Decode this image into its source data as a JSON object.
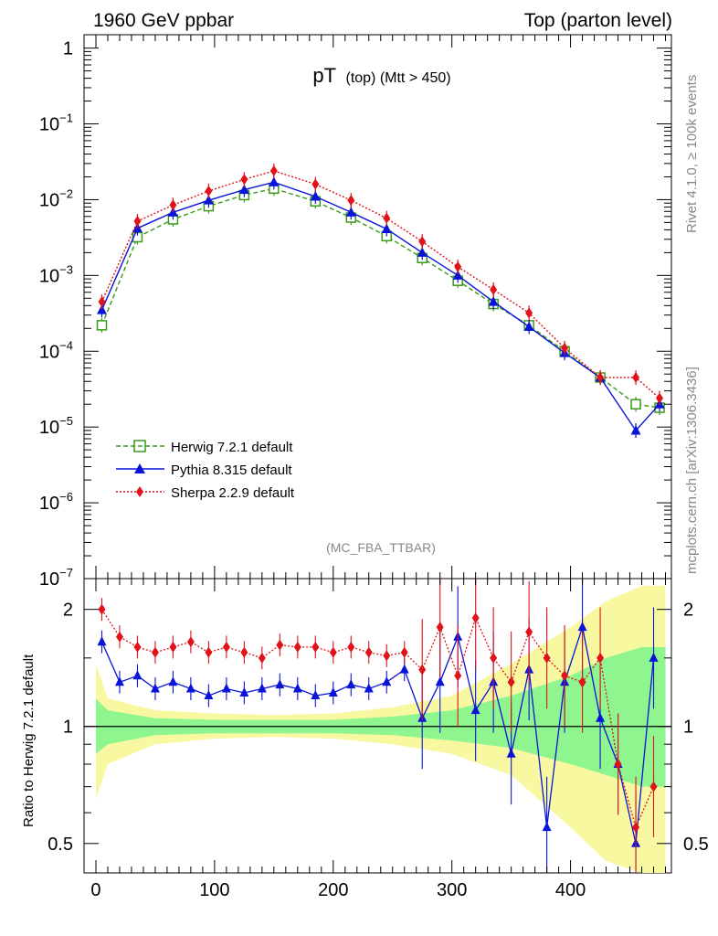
{
  "header": {
    "left": "1960 GeV ppbar",
    "right": "Top (parton level)"
  },
  "side_labels": {
    "rivet": "Rivet 4.1.0, ≥ 100k events",
    "mcplots": "mcplots.cern.ch [arXiv:1306.3436]"
  },
  "analysis_tag": "(MC_FBA_TTBAR)",
  "ratio_ylabel": "Ratio to Herwig 7.2.1 default",
  "colors": {
    "herwig": "#3a9a1a",
    "pythia": "#0a14d8",
    "sherpa": "#e0121a",
    "band_inner": "#8ff58f",
    "band_outer": "#f8f8a0"
  },
  "chart_data": [
    {
      "type": "scatter",
      "title_main": "pT",
      "title_sub": "(top) (Mtt > 450)",
      "yscale": "log",
      "xlim": [
        -10,
        485
      ],
      "ylim": [
        1e-07,
        1.5
      ],
      "x_ticks": [
        0,
        100,
        200,
        300,
        400
      ],
      "x_tick_labels": [
        "0",
        "100",
        "200",
        "300",
        "400"
      ],
      "y_ticks": [
        1e-07,
        1e-06,
        1e-05,
        0.0001,
        0.001,
        0.01,
        0.1,
        1
      ],
      "y_tick_labels": [
        {
          "base": "10",
          "exp": "−7"
        },
        {
          "base": "10",
          "exp": "−6"
        },
        {
          "base": "10",
          "exp": "−5"
        },
        {
          "base": "10",
          "exp": "−4"
        },
        {
          "base": "10",
          "exp": "−3"
        },
        {
          "base": "10",
          "exp": "−2"
        },
        {
          "base": "10",
          "exp": "−1"
        },
        {
          "base": "1",
          "exp": ""
        }
      ],
      "legend_position": "bottom-left",
      "series": [
        {
          "name": "Herwig 7.2.1 default",
          "key": "herwig",
          "marker": "open-square",
          "line": "dashed",
          "x": [
            5,
            35,
            65,
            95,
            125,
            150,
            185,
            215,
            245,
            275,
            305,
            335,
            365,
            395,
            425,
            455,
            475
          ],
          "y": [
            0.00022,
            0.0032,
            0.0055,
            0.0082,
            0.0115,
            0.014,
            0.0095,
            0.0058,
            0.0033,
            0.0017,
            0.00085,
            0.00042,
            0.00022,
            0.0001,
            4.5e-05,
            2e-05,
            1.8e-05
          ]
        },
        {
          "name": "Pythia 8.315 default",
          "key": "pythia",
          "marker": "triangle",
          "line": "solid",
          "x": [
            5,
            35,
            65,
            95,
            125,
            150,
            185,
            215,
            245,
            275,
            305,
            335,
            365,
            395,
            425,
            455,
            475
          ],
          "y": [
            0.00035,
            0.0042,
            0.0068,
            0.0098,
            0.0135,
            0.017,
            0.011,
            0.0068,
            0.0041,
            0.002,
            0.001,
            0.00045,
            0.00021,
            9.5e-05,
            4.5e-05,
            9e-06,
            2e-05
          ]
        },
        {
          "name": "Sherpa 2.2.9 default",
          "key": "sherpa",
          "marker": "diamond",
          "line": "dotted",
          "x": [
            5,
            35,
            65,
            95,
            125,
            150,
            185,
            215,
            245,
            275,
            305,
            335,
            365,
            395,
            425,
            455,
            475
          ],
          "y": [
            0.00045,
            0.0052,
            0.0085,
            0.013,
            0.0185,
            0.024,
            0.016,
            0.0098,
            0.0057,
            0.0028,
            0.0013,
            0.00065,
            0.00032,
            0.00011,
            4.5e-05,
            4.5e-05,
            2.4e-05
          ]
        }
      ]
    },
    {
      "type": "scatter",
      "ylabel": "Ratio to Herwig 7.2.1 default",
      "yscale": "log",
      "xlim": [
        -10,
        485
      ],
      "ylim": [
        0.42,
        2.4
      ],
      "y_ticks": [
        0.5,
        1,
        2
      ],
      "y_tick_labels": [
        "0.5",
        "1",
        "2"
      ],
      "reference_line": 1,
      "uncertainty_band": {
        "x": [
          0,
          10,
          50,
          100,
          150,
          200,
          250,
          300,
          350,
          400,
          430,
          460,
          480
        ],
        "inner_low": [
          0.85,
          0.9,
          0.95,
          0.96,
          0.96,
          0.96,
          0.95,
          0.92,
          0.88,
          0.8,
          0.75,
          0.7,
          0.7
        ],
        "inner_high": [
          1.18,
          1.1,
          1.05,
          1.04,
          1.04,
          1.04,
          1.06,
          1.1,
          1.2,
          1.35,
          1.5,
          1.6,
          1.6
        ],
        "outer_low": [
          0.65,
          0.8,
          0.9,
          0.93,
          0.94,
          0.93,
          0.9,
          0.85,
          0.75,
          0.55,
          0.45,
          0.42,
          0.42
        ],
        "outer_high": [
          1.45,
          1.18,
          1.1,
          1.08,
          1.07,
          1.08,
          1.12,
          1.2,
          1.45,
          1.8,
          2.1,
          2.3,
          2.3
        ]
      },
      "series": [
        {
          "name": "Pythia 8.315 default",
          "key": "pythia",
          "x": [
            5,
            20,
            35,
            50,
            65,
            80,
            95,
            110,
            125,
            140,
            155,
            170,
            185,
            200,
            215,
            230,
            245,
            260,
            275,
            290,
            305,
            320,
            335,
            350,
            365,
            380,
            395,
            410,
            425,
            440,
            455,
            470
          ],
          "y": [
            1.65,
            1.3,
            1.35,
            1.25,
            1.3,
            1.25,
            1.2,
            1.25,
            1.22,
            1.25,
            1.28,
            1.25,
            1.2,
            1.22,
            1.28,
            1.25,
            1.3,
            1.4,
            1.05,
            1.3,
            1.7,
            1.1,
            1.3,
            0.85,
            1.4,
            0.55,
            1.3,
            1.8,
            1.05,
            0.8,
            0.5,
            1.5
          ]
        },
        {
          "name": "Sherpa 2.2.9 default",
          "key": "sherpa",
          "x": [
            5,
            20,
            35,
            50,
            65,
            80,
            95,
            110,
            125,
            140,
            155,
            170,
            185,
            200,
            215,
            230,
            245,
            260,
            275,
            290,
            305,
            320,
            335,
            350,
            365,
            380,
            395,
            410,
            425,
            440,
            455,
            470
          ],
          "y": [
            2.0,
            1.7,
            1.6,
            1.55,
            1.6,
            1.65,
            1.55,
            1.6,
            1.55,
            1.5,
            1.62,
            1.6,
            1.6,
            1.55,
            1.6,
            1.55,
            1.52,
            1.55,
            1.4,
            1.8,
            1.35,
            1.9,
            1.5,
            1.3,
            1.75,
            1.5,
            1.35,
            1.3,
            1.5,
            0.8,
            0.55,
            0.7
          ]
        }
      ]
    }
  ]
}
